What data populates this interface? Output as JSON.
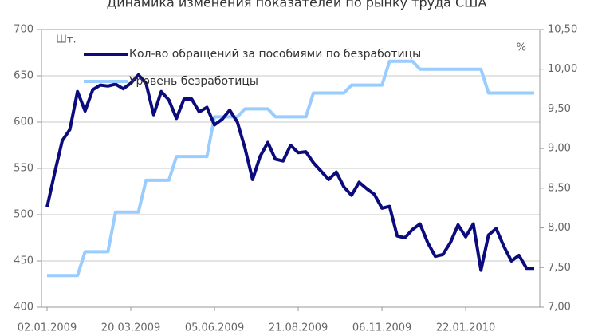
{
  "chart_data": {
    "type": "line",
    "title": "Динамика изменения показателей по рынку труда США",
    "y_label": "Шт.",
    "y2_label": "%",
    "categories": [
      "02.01.2009",
      null,
      null,
      null,
      null,
      null,
      null,
      null,
      null,
      null,
      null,
      "20.03.2009",
      null,
      null,
      null,
      null,
      null,
      null,
      null,
      null,
      null,
      null,
      "05.06.2009",
      null,
      null,
      null,
      null,
      null,
      null,
      null,
      null,
      null,
      null,
      "21.08.2009",
      null,
      null,
      null,
      null,
      null,
      null,
      null,
      null,
      null,
      null,
      "06.11.2009",
      null,
      null,
      null,
      null,
      null,
      null,
      null,
      null,
      null,
      null,
      "22.01.2010",
      null,
      null,
      null,
      null,
      null,
      null,
      null,
      null,
      null
    ],
    "series": [
      {
        "name": "Кол-во обращений за пособиями по безработицы",
        "color": "#0b0b7c",
        "axis": "y",
        "values": [
          508,
          545,
          580,
          592,
          633,
          612,
          635,
          640,
          639,
          641,
          636,
          642,
          651,
          642,
          608,
          633,
          624,
          604,
          625,
          625,
          611,
          616,
          597,
          603,
          613,
          600,
          572,
          538,
          563,
          578,
          560,
          558,
          575,
          567,
          568,
          556,
          547,
          538,
          546,
          530,
          521,
          535,
          528,
          522,
          507,
          509,
          477,
          475,
          484,
          490,
          470,
          455,
          457,
          470,
          489,
          476,
          490,
          440,
          478,
          485,
          466,
          450,
          456,
          442,
          442
        ]
      },
      {
        "name": "Уровень безработицы",
        "color": "#99ccff",
        "axis": "y2",
        "values": [
          7.4,
          7.4,
          7.4,
          7.4,
          7.4,
          7.7,
          7.7,
          7.7,
          7.7,
          8.2,
          8.2,
          8.2,
          8.2,
          8.6,
          8.6,
          8.6,
          8.6,
          8.9,
          8.9,
          8.9,
          8.9,
          8.9,
          9.4,
          9.4,
          9.4,
          9.4,
          9.5,
          9.5,
          9.5,
          9.5,
          9.4,
          9.4,
          9.4,
          9.4,
          9.4,
          9.7,
          9.7,
          9.7,
          9.7,
          9.7,
          9.8,
          9.8,
          9.8,
          9.8,
          9.8,
          10.1,
          10.1,
          10.1,
          10.1,
          10.0,
          10.0,
          10.0,
          10.0,
          10.0,
          10.0,
          10.0,
          10.0,
          10.0,
          9.7,
          9.7,
          9.7,
          9.7,
          9.7,
          9.7,
          9.7
        ]
      }
    ],
    "ylim": [
      400,
      700
    ],
    "yticks": [
      400,
      450,
      500,
      550,
      600,
      650,
      700
    ],
    "y2lim": [
      7,
      10.5
    ],
    "y2ticks": [
      {
        "value": 7,
        "label": "7,00"
      },
      {
        "value": 7.5,
        "label": "7,50"
      },
      {
        "value": 8,
        "label": "8,00"
      },
      {
        "value": 8.5,
        "label": "8,50"
      },
      {
        "value": 9,
        "label": "9,00"
      },
      {
        "value": 9.5,
        "label": "9,50"
      },
      {
        "value": 10,
        "label": "10,00"
      },
      {
        "value": 10.5,
        "label": "10,50"
      }
    ],
    "grid": true,
    "legend": "top-left"
  }
}
